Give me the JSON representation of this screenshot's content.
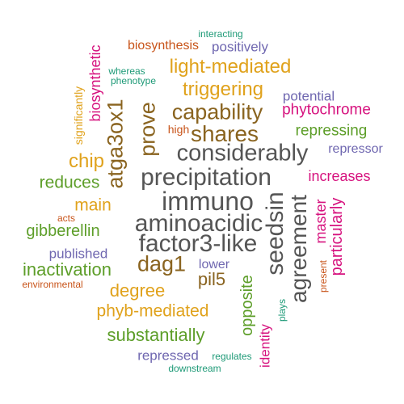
{
  "palette": {
    "gray": "#555555",
    "brown": "#8a6420",
    "gold": "#e0a21c",
    "green": "#5d9e29",
    "purple": "#6f67b0",
    "magenta": "#d6127e",
    "orange": "#c8541a",
    "teal": "#1e9a77"
  },
  "words": [
    {
      "text": "interacting",
      "color": "teal"
    },
    {
      "text": "biosynthesis",
      "color": "orange"
    },
    {
      "text": "positively",
      "color": "purple"
    },
    {
      "text": "biosynthetic",
      "color": "magenta"
    },
    {
      "text": "whereas",
      "color": "teal"
    },
    {
      "text": "phenotype",
      "color": "teal"
    },
    {
      "text": "light-mediated",
      "color": "gold"
    },
    {
      "text": "significantly",
      "color": "gold"
    },
    {
      "text": "triggering",
      "color": "gold"
    },
    {
      "text": "potential",
      "color": "purple"
    },
    {
      "text": "atga3ox1",
      "color": "brown"
    },
    {
      "text": "prove",
      "color": "brown"
    },
    {
      "text": "capability",
      "color": "brown"
    },
    {
      "text": "phytochrome",
      "color": "magenta"
    },
    {
      "text": "high",
      "color": "orange"
    },
    {
      "text": "shares",
      "color": "brown"
    },
    {
      "text": "repressing",
      "color": "green"
    },
    {
      "text": "considerably",
      "color": "gray"
    },
    {
      "text": "repressor",
      "color": "purple"
    },
    {
      "text": "chip",
      "color": "gold"
    },
    {
      "text": "precipitation",
      "color": "gray"
    },
    {
      "text": "increases",
      "color": "magenta"
    },
    {
      "text": "reduces",
      "color": "green"
    },
    {
      "text": "immuno",
      "color": "gray"
    },
    {
      "text": "main",
      "color": "gold"
    },
    {
      "text": "seedsin",
      "color": "gray"
    },
    {
      "text": "agreement",
      "color": "gray"
    },
    {
      "text": "master",
      "color": "magenta"
    },
    {
      "text": "particularly",
      "color": "magenta"
    },
    {
      "text": "acts",
      "color": "orange"
    },
    {
      "text": "aminoacidic",
      "color": "gray"
    },
    {
      "text": "gibberellin",
      "color": "green"
    },
    {
      "text": "factor3-like",
      "color": "gray"
    },
    {
      "text": "published",
      "color": "purple"
    },
    {
      "text": "present",
      "color": "orange"
    },
    {
      "text": "dag1",
      "color": "brown"
    },
    {
      "text": "lower",
      "color": "purple"
    },
    {
      "text": "inactivation",
      "color": "green"
    },
    {
      "text": "pil5",
      "color": "brown"
    },
    {
      "text": "environmental",
      "color": "orange"
    },
    {
      "text": "degree",
      "color": "gold"
    },
    {
      "text": "opposite",
      "color": "green"
    },
    {
      "text": "identity",
      "color": "magenta"
    },
    {
      "text": "plays",
      "color": "teal"
    },
    {
      "text": "phyb-mediated",
      "color": "gold"
    },
    {
      "text": "substantially",
      "color": "green"
    },
    {
      "text": "repressed",
      "color": "purple"
    },
    {
      "text": "regulates",
      "color": "teal"
    },
    {
      "text": "downstream",
      "color": "teal"
    }
  ]
}
